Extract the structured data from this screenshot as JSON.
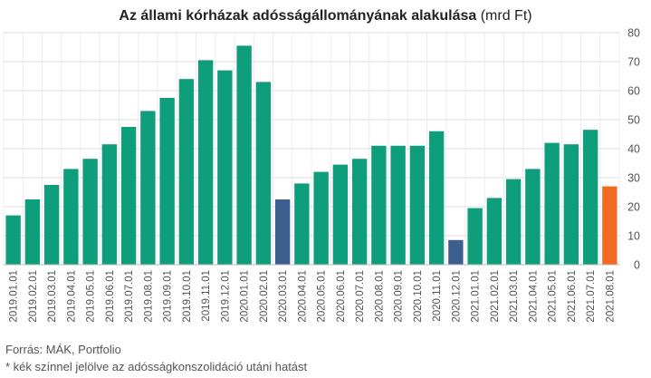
{
  "chart_data": {
    "type": "bar",
    "title": "Az állami kórházak adósságállományának alakulása",
    "title_unit": "(mrd Ft)",
    "ylim": [
      0,
      80
    ],
    "y_ticks": [
      0,
      10,
      20,
      30,
      40,
      50,
      60,
      70,
      80
    ],
    "y_axis_position": "right",
    "grid": true,
    "categories": [
      "2019.01.01",
      "2019.02.01",
      "2019.03.01",
      "2019.04.01",
      "2019.05.01",
      "2019.06.01",
      "2019.07.01",
      "2019.08.01",
      "2019.09.01",
      "2019.10.01",
      "2019.11.01",
      "2019.12.01",
      "2020.01.01",
      "2020.02.01",
      "2020.03.01",
      "2020.04.01",
      "2020.05.01",
      "2020.06.01",
      "2020.07.01",
      "2020.08.01",
      "2020.09.01",
      "2020.10.01",
      "2020.11.01",
      "2020.12.01",
      "2021.01.01",
      "2021.02.01",
      "2021.03.01",
      "2021.04.01",
      "2021.05.01",
      "2021.06.01",
      "2021.07.01",
      "2021.08.01"
    ],
    "values": [
      17,
      22.5,
      27.5,
      33,
      36.5,
      41.5,
      47.5,
      53,
      57.5,
      64,
      70.5,
      67,
      75.5,
      63,
      22.5,
      28,
      32,
      34.5,
      36.5,
      41,
      41,
      41,
      46,
      8.5,
      19.5,
      23,
      29.5,
      33,
      42,
      41.5,
      46.5,
      27
    ],
    "bar_colors": [
      "#0f9e7b",
      "#0f9e7b",
      "#0f9e7b",
      "#0f9e7b",
      "#0f9e7b",
      "#0f9e7b",
      "#0f9e7b",
      "#0f9e7b",
      "#0f9e7b",
      "#0f9e7b",
      "#0f9e7b",
      "#0f9e7b",
      "#0f9e7b",
      "#0f9e7b",
      "#3d5f8f",
      "#0f9e7b",
      "#0f9e7b",
      "#0f9e7b",
      "#0f9e7b",
      "#0f9e7b",
      "#0f9e7b",
      "#0f9e7b",
      "#0f9e7b",
      "#3d5f8f",
      "#0f9e7b",
      "#0f9e7b",
      "#0f9e7b",
      "#0f9e7b",
      "#0f9e7b",
      "#0f9e7b",
      "#0f9e7b",
      "#f26a21"
    ],
    "colors": {
      "default": "#0f9e7b",
      "post_consolidation": "#3d5f8f",
      "latest": "#f26a21",
      "grid": "#dddddd",
      "text": "#555555"
    }
  },
  "footer": {
    "source": "Forrás: MÁK, Portfolio",
    "note": "* kék színnel jelölve az adósságkonszolidáció utáni hatást"
  }
}
